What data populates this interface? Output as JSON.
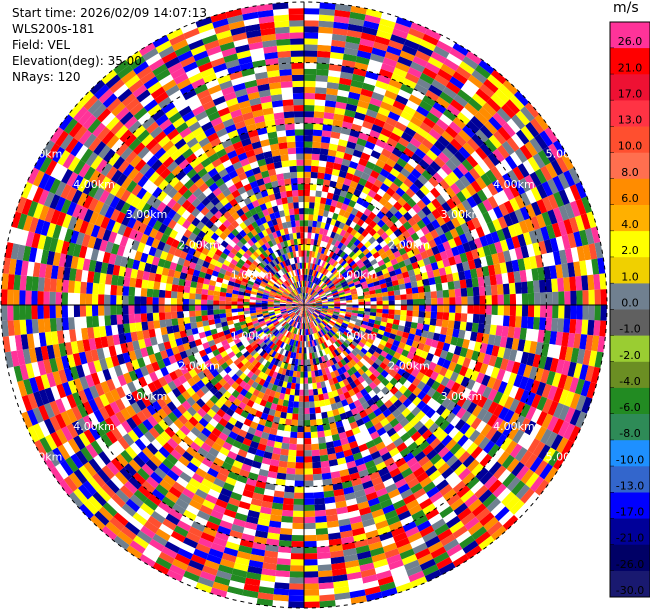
{
  "header": {
    "start_time": "Start time: 2026/02/09 14:07:13",
    "instrument": "WLS200s-181",
    "field": "Field: VEL",
    "elevation": "Elevation(deg): 35.00",
    "nrays": "NRays: 120"
  },
  "chart_data": {
    "type": "heatmap",
    "projection": "polar-ppi",
    "field": "VEL",
    "elevation_deg": 35.0,
    "nrays": 120,
    "range_rings_km": [
      1.0,
      2.0,
      3.0,
      4.0,
      5.0
    ],
    "ring_labels": [
      "1.00km",
      "2.00km",
      "3.00km",
      "4.00km",
      "5.00km"
    ],
    "max_range_km": 5.0,
    "gates_per_ray": 50,
    "colorbar": {
      "unit": "m/s",
      "ticks": [
        "26.0",
        "21.0",
        "17.0",
        "13.0",
        "10.0",
        "8.0",
        "6.0",
        "4.0",
        "2.0",
        "1.0",
        "0.0",
        "-1.0",
        "-2.0",
        "-4.0",
        "-6.0",
        "-8.0",
        "-10.0",
        "-13.0",
        "-17.0",
        "-21.0",
        "-26.0",
        "-30.0"
      ],
      "colors": [
        "#ff3399",
        "#ff0000",
        "#ee1133",
        "#ff3344",
        "#ff4f2f",
        "#ff6f4f",
        "#ff8c00",
        "#ffb000",
        "#ffff00",
        "#f0d000",
        "#708090",
        "#606060",
        "#9acd32",
        "#6b8e23",
        "#228b22",
        "#2e8b57",
        "#1e90ff",
        "#3366cc",
        "#0000ff",
        "#000099",
        "#000066",
        "#191970"
      ]
    },
    "velocity_palette": [
      "#ff3399",
      "#ff0000",
      "#ff4f2f",
      "#ff8c00",
      "#ffff00",
      "#708090",
      "#228b22",
      "#0000ff",
      "#000099",
      "#ffffff"
    ]
  }
}
